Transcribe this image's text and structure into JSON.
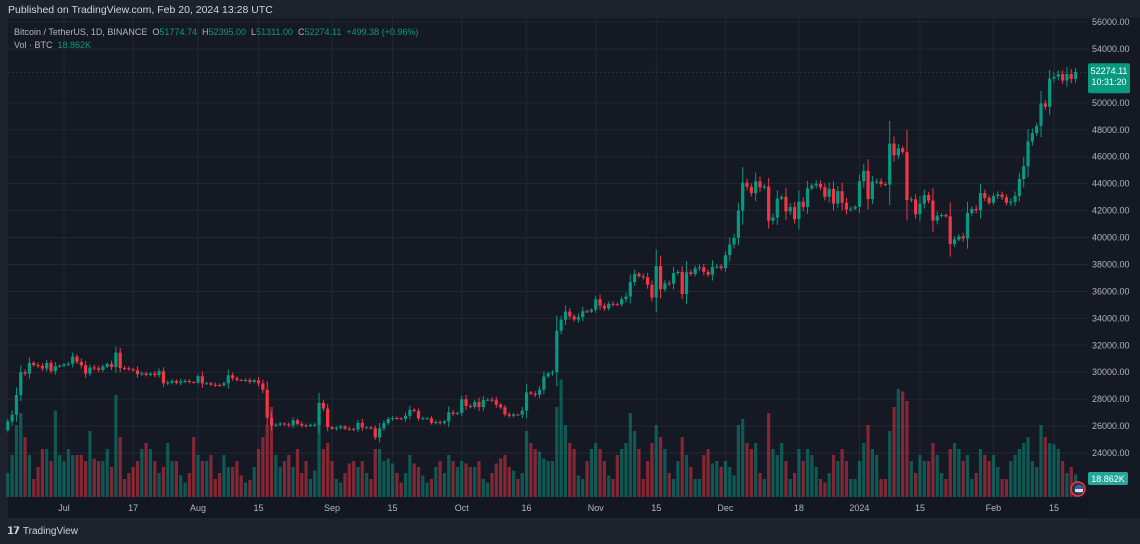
{
  "header": {
    "published": "Published on TradingView.com, Feb 20, 2024 13:28 UTC"
  },
  "legend": {
    "symbol": "Bitcoin / TetherUS, 1D, BINANCE",
    "o_label": "O",
    "o": "51774.74",
    "h_label": "H",
    "h": "52395.00",
    "l_label": "L",
    "l": "51311.00",
    "c_label": "C",
    "c": "52274.11",
    "change": "+499.38 (+0.96%)",
    "vol_label": "Vol · BTC",
    "vol": "18.862K"
  },
  "last_price": {
    "price": "52274.11",
    "countdown": "10:31:20",
    "volume": "18.862K"
  },
  "footer": {
    "brand": "TradingView",
    "logo_text": "17"
  },
  "colors": {
    "up": "#089981",
    "down": "#f23645",
    "background": "#151924"
  },
  "chart_data": {
    "type": "candlestick",
    "title": "Bitcoin / TetherUS, 1D, BINANCE",
    "ylim": [
      20000,
      56000
    ],
    "grid": true,
    "y_ticks": [
      "56000.00",
      "54000.00",
      "50000.00",
      "48000.00",
      "46000.00",
      "44000.00",
      "42000.00",
      "40000.00",
      "38000.00",
      "36000.00",
      "34000.00",
      "32000.00",
      "30000.00",
      "28000.00",
      "26000.00",
      "24000.00"
    ],
    "x_ticks": [
      {
        "label": "Jul",
        "date": "2023-07-01"
      },
      {
        "label": "17",
        "date": "2023-07-17"
      },
      {
        "label": "Aug",
        "date": "2023-08-01"
      },
      {
        "label": "15",
        "date": "2023-08-15"
      },
      {
        "label": "Sep",
        "date": "2023-09-01"
      },
      {
        "label": "15",
        "date": "2023-09-15"
      },
      {
        "label": "Oct",
        "date": "2023-10-01"
      },
      {
        "label": "16",
        "date": "2023-10-16"
      },
      {
        "label": "Nov",
        "date": "2023-11-01"
      },
      {
        "label": "15",
        "date": "2023-11-15"
      },
      {
        "label": "Dec",
        "date": "2023-12-01"
      },
      {
        "label": "18",
        "date": "2023-12-18"
      },
      {
        "label": "2024",
        "date": "2024-01-01"
      },
      {
        "label": "15",
        "date": "2024-01-15"
      },
      {
        "label": "Feb",
        "date": "2024-02-01"
      },
      {
        "label": "15",
        "date": "2024-02-15"
      }
    ],
    "first_open": 25700,
    "volume_unit": "K BTC",
    "segments": [
      {
        "start": "2023-06-18",
        "close": [
          26340,
          26840,
          28300,
          30000,
          29890,
          30690,
          30530,
          30470,
          30270,
          30690,
          30080,
          30450,
          30470
        ],
        "volume": [
          20,
          35,
          60,
          70,
          50,
          35,
          15,
          25,
          40,
          40,
          30,
          72,
          35
        ]
      },
      {
        "start": "2023-07-01",
        "close": [
          30590,
          30620,
          31160,
          30770,
          30510,
          29900,
          30350,
          30290,
          30170,
          30410,
          30620,
          30380,
          31450,
          30310,
          30290,
          30230,
          30140,
          29860,
          29910,
          29800,
          29900,
          29790,
          30080,
          29180,
          29230,
          29350,
          29210,
          29310,
          29350,
          29270,
          29230
        ],
        "volume": [
          30,
          40,
          35,
          35,
          35,
          30,
          55,
          32,
          30,
          30,
          40,
          25,
          85,
          50,
          15,
          20,
          25,
          30,
          40,
          45,
          40,
          30,
          20,
          25,
          45,
          30,
          30,
          18,
          12,
          20,
          50
        ]
      },
      {
        "start": "2023-08-01",
        "close": [
          29700,
          29170,
          29180,
          29070,
          29050,
          29040,
          29180,
          29770,
          29560,
          29430,
          29400,
          29420,
          29280,
          29400,
          29170,
          28700,
          26620,
          26050,
          26100,
          26190,
          26120,
          26050,
          26430,
          26160,
          26050,
          26010,
          26090,
          26100,
          27720,
          27300,
          25930
        ],
        "volume": [
          35,
          30,
          30,
          35,
          15,
          20,
          35,
          25,
          25,
          30,
          18,
          12,
          14,
          25,
          40,
          50,
          60,
          75,
          35,
          25,
          30,
          35,
          25,
          40,
          20,
          30,
          15,
          22,
          65,
          40,
          45
        ]
      },
      {
        "start": "2023-09-01",
        "close": [
          25800,
          25870,
          25970,
          25810,
          25780,
          25750,
          26240,
          25900,
          25900,
          25840,
          25160,
          25840,
          26220,
          26530,
          26600,
          26570,
          26530,
          26760,
          27210,
          27130,
          26570,
          26580,
          26580,
          26250,
          26300,
          26220,
          26350,
          27020,
          26910,
          26970
        ],
        "volume": [
          30,
          15,
          12,
          20,
          28,
          30,
          25,
          30,
          20,
          15,
          40,
          40,
          30,
          32,
          28,
          20,
          12,
          20,
          35,
          28,
          25,
          18,
          12,
          15,
          25,
          30,
          20,
          35,
          30,
          25
        ]
      },
      {
        "start": "2023-10-01",
        "close": [
          27990,
          27500,
          27430,
          27790,
          27410,
          27930,
          27960,
          27920,
          27590,
          27390,
          26870,
          26760,
          26860,
          26850,
          27150,
          28500,
          28400,
          28320,
          28710,
          29680,
          29910,
          29990,
          33080,
          33900,
          34500,
          34150,
          33910,
          34090,
          34530,
          34500,
          34640
        ],
        "volume": [
          30,
          28,
          25,
          25,
          30,
          15,
          12,
          20,
          28,
          32,
          35,
          25,
          22,
          15,
          20,
          55,
          45,
          40,
          38,
          32,
          30,
          30,
          75,
          98,
          60,
          45,
          40,
          18,
          15,
          30,
          40
        ]
      },
      {
        "start": "2023-11-01",
        "close": [
          35420,
          34940,
          34730,
          35080,
          35050,
          35040,
          35420,
          35620,
          36690,
          37310,
          37130,
          37060,
          36490,
          35550,
          37880,
          36160,
          36600,
          36570,
          37360,
          37450,
          35810,
          37420,
          37290,
          37720,
          37790,
          37450,
          37240,
          37830,
          37850,
          37720
        ],
        "volume": [
          45,
          40,
          30,
          18,
          15,
          35,
          40,
          45,
          70,
          55,
          40,
          15,
          30,
          45,
          60,
          50,
          40,
          20,
          15,
          30,
          50,
          35,
          25,
          15,
          15,
          35,
          40,
          28,
          30,
          25
        ]
      },
      {
        "start": "2023-12-01",
        "close": [
          38690,
          39480,
          39970,
          41990,
          44080,
          43770,
          43290,
          44170,
          43720,
          43790,
          41240,
          41490,
          42890,
          43020,
          41940,
          42260,
          41370,
          42660,
          42270,
          43650,
          43870,
          43990,
          43740,
          43020,
          43610,
          42520,
          43440,
          42580,
          42070,
          42140,
          42280
        ],
        "volume": [
          30,
          25,
          18,
          60,
          65,
          45,
          40,
          45,
          20,
          15,
          70,
          40,
          35,
          45,
          30,
          15,
          20,
          40,
          30,
          40,
          35,
          25,
          15,
          12,
          20,
          35,
          30,
          40,
          30,
          15,
          15
        ]
      },
      {
        "start": "2024-01-01",
        "close": [
          44180,
          44950,
          42850,
          44150,
          44160,
          43970,
          43930,
          46970,
          46110,
          46630,
          46340,
          42780,
          42840,
          41730,
          42510,
          43150,
          42740,
          41260,
          41620,
          41670,
          41570,
          39520,
          39850,
          40080,
          39930,
          41820,
          42120,
          42030,
          43300,
          42940,
          42580
        ],
        "volume": [
          30,
          45,
          60,
          40,
          35,
          15,
          15,
          55,
          75,
          90,
          88,
          80,
          30,
          20,
          35,
          30,
          30,
          45,
          35,
          20,
          15,
          40,
          45,
          40,
          30,
          35,
          15,
          20,
          40,
          35,
          30
        ]
      },
      {
        "start": "2024-02-01",
        "close": [
          43080,
          43190,
          42990,
          42580,
          42660,
          43090,
          44340,
          45290,
          47130,
          47750,
          48290,
          49950,
          49700,
          51800,
          51930,
          52130,
          51660,
          52140,
          51774.74,
          52274.11
        ],
        "volume": [
          35,
          25,
          15,
          15,
          30,
          35,
          40,
          45,
          50,
          30,
          25,
          60,
          50,
          45,
          44,
          40,
          30,
          20,
          25,
          18.862
        ]
      }
    ]
  }
}
